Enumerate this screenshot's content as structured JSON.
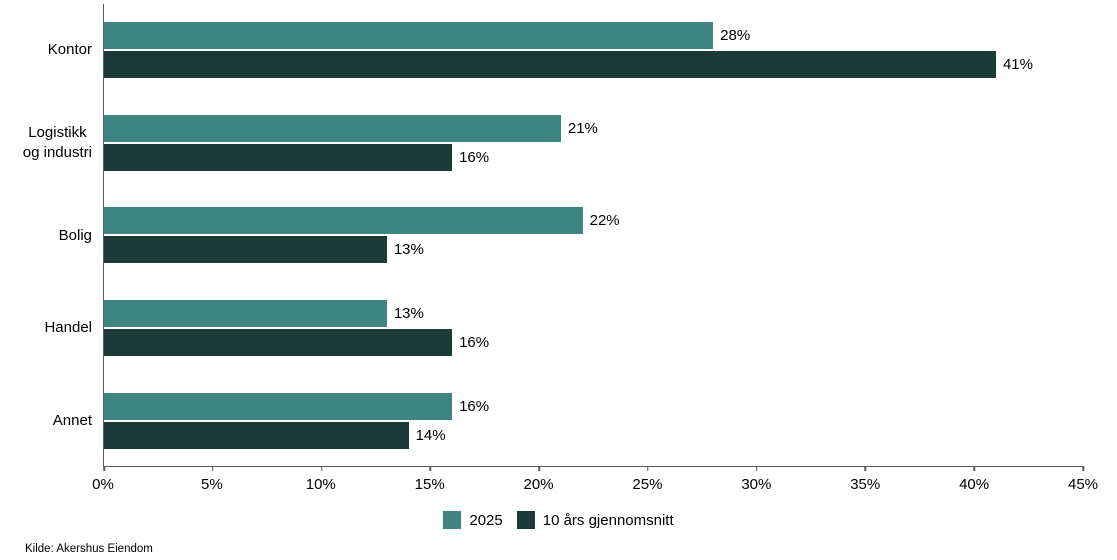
{
  "chart_data": {
    "type": "bar",
    "orientation": "horizontal",
    "title": "",
    "xlabel": "",
    "ylabel": "",
    "categories": [
      {
        "label": "Kontor",
        "lines": [
          "Kontor"
        ]
      },
      {
        "label": "Logistikk og industri",
        "lines": [
          "Logistikk",
          "og industri"
        ]
      },
      {
        "label": "Bolig",
        "lines": [
          "Bolig"
        ]
      },
      {
        "label": "Handel",
        "lines": [
          "Handel"
        ]
      },
      {
        "label": "Annet",
        "lines": [
          "Annet"
        ]
      }
    ],
    "series": [
      {
        "name": "2025",
        "color": "#3e8581",
        "values": [
          28,
          21,
          22,
          13,
          16
        ]
      },
      {
        "name": "10 års gjennomsnitt",
        "color": "#1c3a36",
        "values": [
          41,
          16,
          13,
          16,
          14
        ]
      }
    ],
    "value_suffix": "%",
    "xlim": [
      0,
      45
    ],
    "x_ticks": [
      {
        "value": 0,
        "label": "0%"
      },
      {
        "value": 5,
        "label": "5%"
      },
      {
        "value": 10,
        "label": "10%"
      },
      {
        "value": 15,
        "label": "15%"
      },
      {
        "value": 20,
        "label": "20%"
      },
      {
        "value": 25,
        "label": "25%"
      },
      {
        "value": 30,
        "label": "30%"
      },
      {
        "value": 35,
        "label": "35%"
      },
      {
        "value": 40,
        "label": "40%"
      },
      {
        "value": 45,
        "label": "45%"
      }
    ],
    "grid": false,
    "legend_position": "bottom",
    "axis_color": "#595959",
    "text_color": "#000000"
  },
  "source": "Kilde: Akershus Eiendom"
}
